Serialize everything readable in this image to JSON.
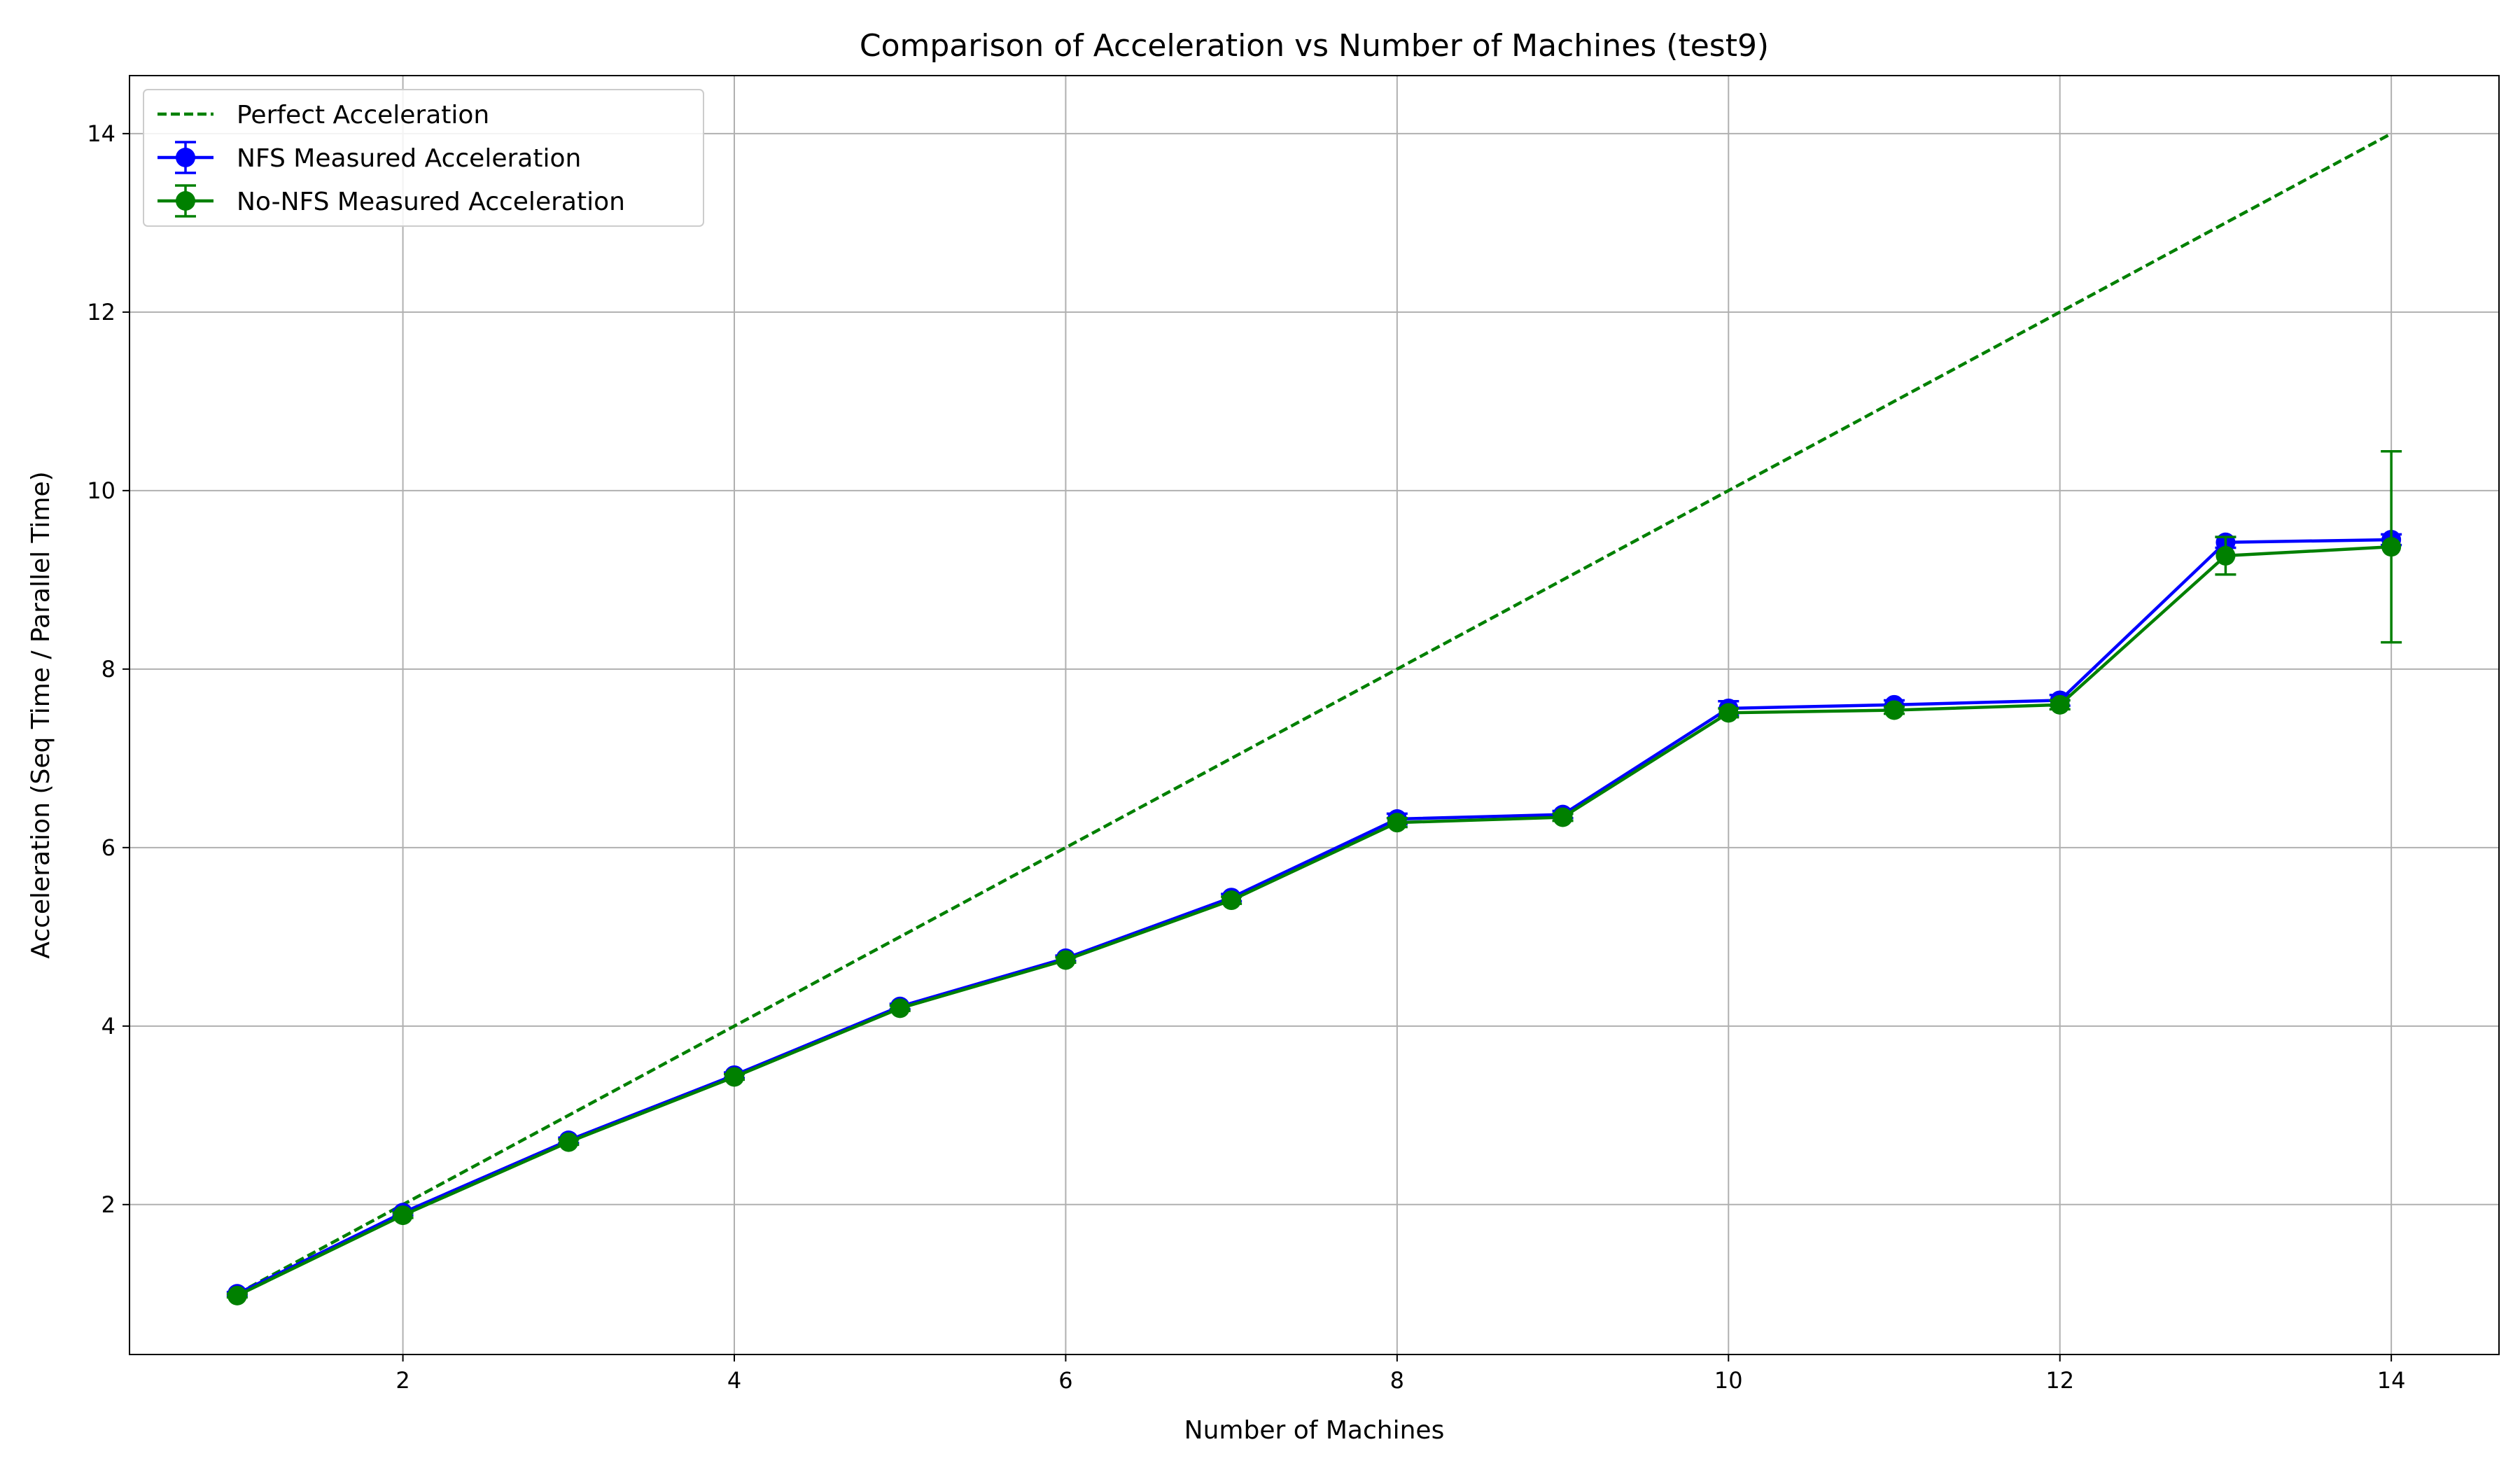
{
  "chart_data": {
    "type": "line",
    "title": "Comparison of Acceleration vs Number of Machines (test9)",
    "xlabel": "Number of Machines",
    "ylabel": "Acceleration (Seq Time / Parallel Time)",
    "xlim": [
      0.35,
      14.65
    ],
    "ylim": [
      0.32,
      14.65
    ],
    "xticks": [
      2,
      4,
      6,
      8,
      10,
      12,
      14
    ],
    "yticks": [
      2,
      4,
      6,
      8,
      10,
      12,
      14
    ],
    "grid": true,
    "legend_position": "top-left",
    "series": [
      {
        "name": "Perfect Acceleration",
        "style": "dashed",
        "color": "#008000",
        "x": [
          1,
          14
        ],
        "y": [
          1,
          14
        ]
      },
      {
        "name": "NFS Measured Acceleration",
        "style": "solid-markers-errorbars",
        "color": "#0000ff",
        "x": [
          1,
          2,
          3,
          4,
          5,
          6,
          7,
          8,
          9,
          10,
          11,
          12,
          13,
          14
        ],
        "y": [
          1.0,
          1.91,
          2.72,
          3.45,
          4.22,
          4.76,
          5.44,
          6.32,
          6.37,
          7.56,
          7.6,
          7.65,
          9.42,
          9.45
        ],
        "err": [
          0.02,
          0.03,
          0.03,
          0.03,
          0.03,
          0.03,
          0.04,
          0.06,
          0.04,
          0.08,
          0.05,
          0.06,
          0.06,
          0.06
        ]
      },
      {
        "name": "No-NFS Measured Acceleration",
        "style": "solid-markers-errorbars",
        "color": "#008000",
        "x": [
          1,
          2,
          3,
          4,
          5,
          6,
          7,
          8,
          9,
          10,
          11,
          12,
          13,
          14
        ],
        "y": [
          0.98,
          1.88,
          2.7,
          3.43,
          4.2,
          4.74,
          5.41,
          6.28,
          6.34,
          7.51,
          7.54,
          7.6,
          9.27,
          9.37
        ],
        "err": [
          0.02,
          0.03,
          0.03,
          0.03,
          0.03,
          0.03,
          0.04,
          0.05,
          0.04,
          0.05,
          0.04,
          0.05,
          0.21,
          1.07
        ]
      }
    ]
  }
}
